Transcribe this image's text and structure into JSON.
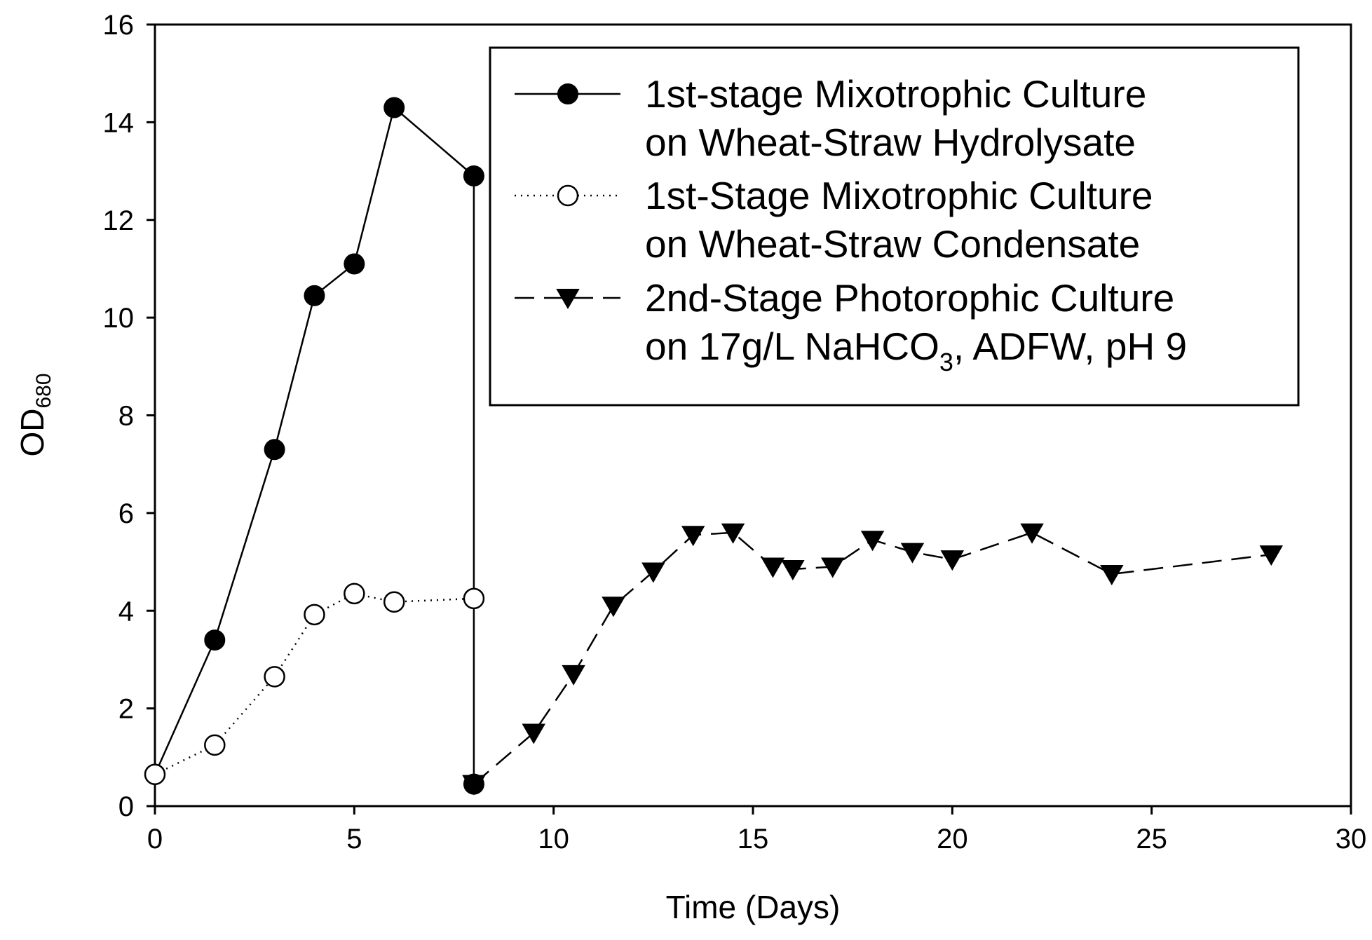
{
  "chart_data": {
    "type": "line",
    "title": "",
    "xlabel": "Time (Days)",
    "ylabel": "OD",
    "ylabel_subscript": "680",
    "xlim": [
      0,
      30
    ],
    "ylim": [
      0,
      16
    ],
    "x_ticks": [
      "0",
      "5",
      "10",
      "15",
      "20",
      "25",
      "30"
    ],
    "y_ticks": [
      "0",
      "2",
      "4",
      "6",
      "8",
      "10",
      "12",
      "14",
      "16"
    ],
    "grid": false,
    "legend_position": "top-right",
    "series": [
      {
        "name": "1st-stage Mixotrophic Culture on Wheat-Straw Hydrolysate",
        "legend_lines": [
          "1st-stage Mixotrophic Culture",
          "on Wheat-Straw Hydrolysate"
        ],
        "line_style": "solid",
        "marker": "filled-circle",
        "x": [
          0,
          1.5,
          3,
          4,
          5,
          6,
          8,
          8
        ],
        "y": [
          0.65,
          3.4,
          7.3,
          10.45,
          11.1,
          14.3,
          12.9,
          0.45
        ]
      },
      {
        "name": "1st-Stage Mixotrophic Culture on Wheat-Straw Condensate",
        "legend_lines": [
          "1st-Stage Mixotrophic Culture",
          "on Wheat-Straw Condensate"
        ],
        "line_style": "dotted",
        "marker": "open-circle",
        "x": [
          0,
          1.5,
          3,
          4,
          5,
          6,
          8
        ],
        "y": [
          0.65,
          1.25,
          2.65,
          3.92,
          4.35,
          4.18,
          4.25
        ]
      },
      {
        "name": "2nd-Stage Photorophic Culture on 17g/L NaHCO3, ADFW, pH 9",
        "legend_lines": [
          "2nd-Stage Photorophic Culture",
          "on 17g/L NaHCO"
        ],
        "legend_subscript": "3",
        "legend_suffix": ", ADFW, pH 9",
        "line_style": "dashed",
        "marker": "filled-triangle-down",
        "x": [
          8,
          9.5,
          10.5,
          11.5,
          12.5,
          13.5,
          14.5,
          15.5,
          16,
          17,
          18,
          19,
          20,
          22,
          24,
          28
        ],
        "y": [
          0.45,
          1.5,
          2.7,
          4.1,
          4.8,
          5.55,
          5.6,
          4.9,
          4.85,
          4.9,
          5.45,
          5.2,
          5.05,
          5.6,
          4.75,
          5.15
        ]
      }
    ]
  }
}
